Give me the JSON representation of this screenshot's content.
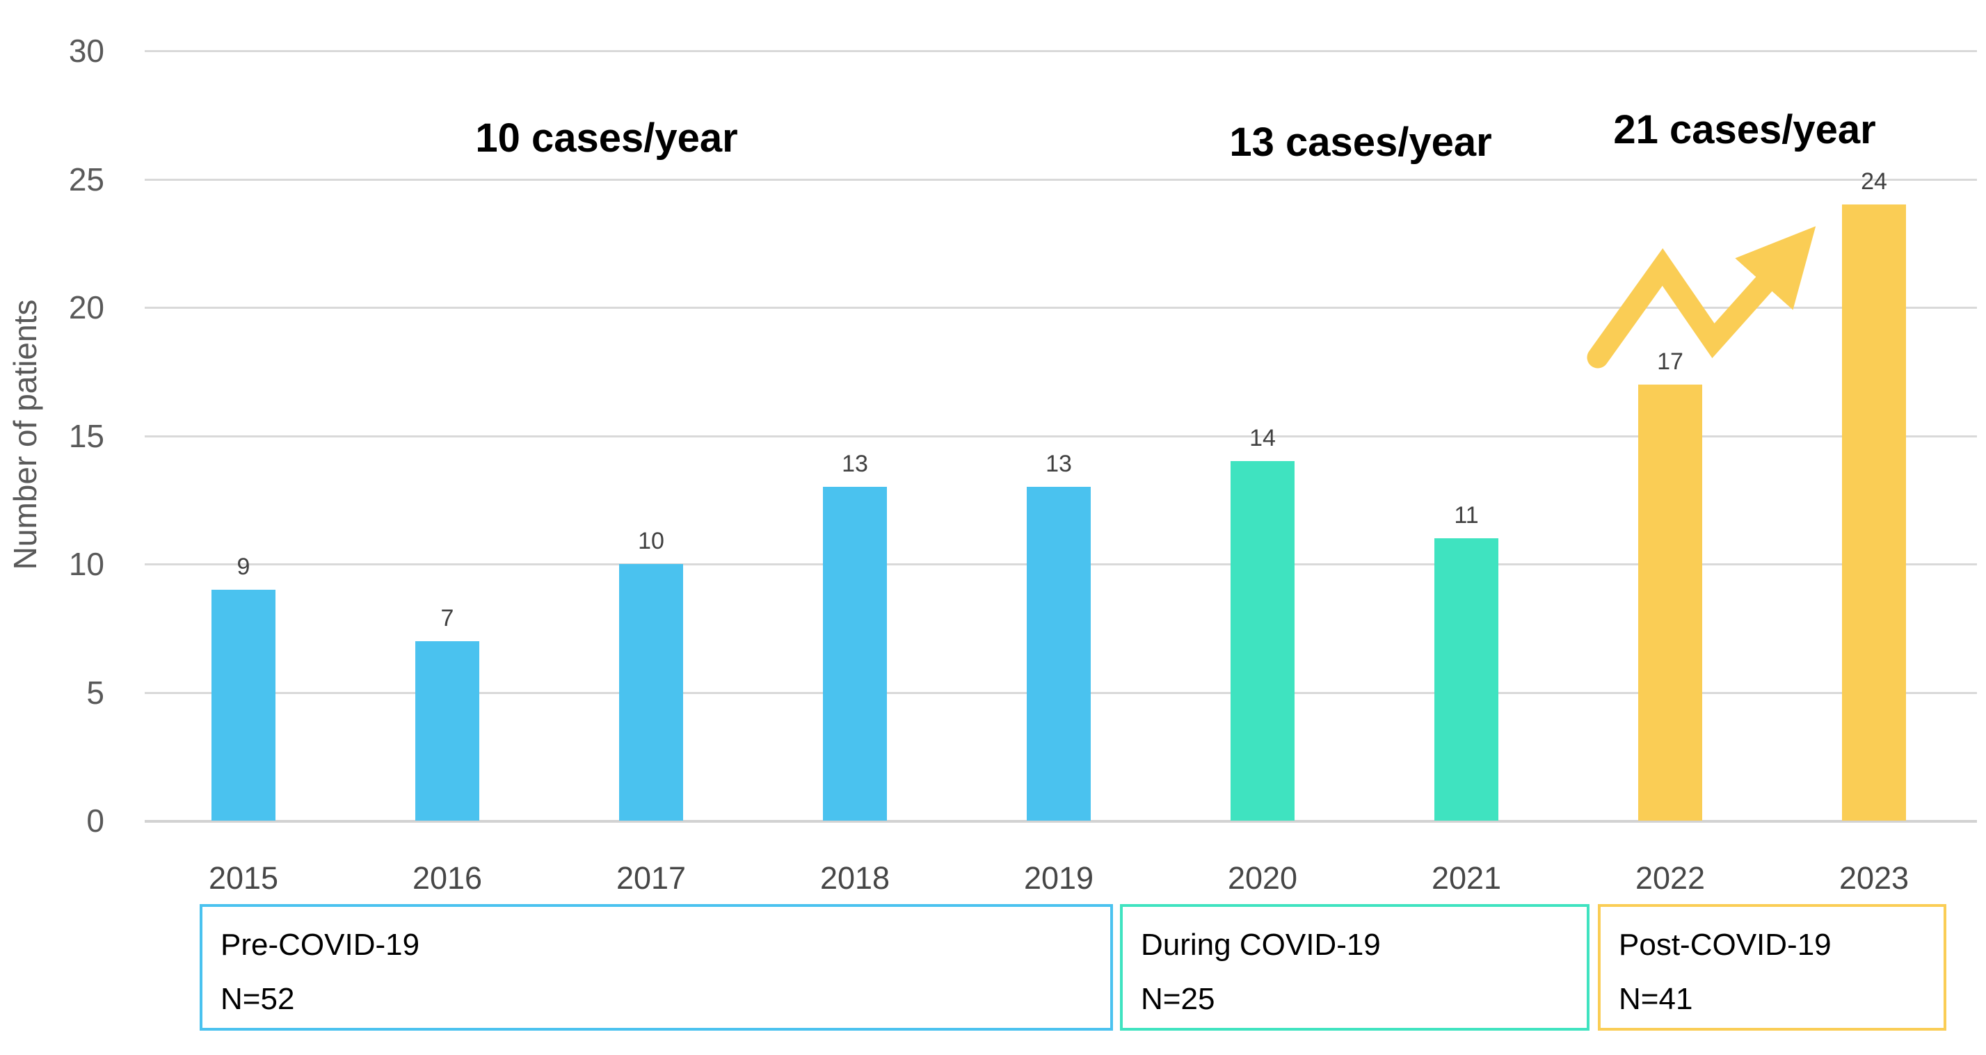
{
  "chart_data": {
    "type": "bar",
    "title": "",
    "ylabel": "Number of patients",
    "xlabel": "",
    "ylim": [
      0,
      30
    ],
    "yticks": [
      0,
      5,
      10,
      15,
      20,
      25,
      30
    ],
    "grid": true,
    "legend_position": "bottom",
    "categories": [
      "2015",
      "2016",
      "2017",
      "2018",
      "2019",
      "2020",
      "2021",
      "2022",
      "2023"
    ],
    "values": [
      9,
      7,
      10,
      13,
      13,
      14,
      11,
      17,
      24
    ],
    "bar_group_index": [
      0,
      0,
      0,
      0,
      0,
      1,
      1,
      2,
      2
    ],
    "groups": [
      {
        "label": "Pre-COVID-19",
        "n_label": "N=52",
        "rate_label": "10 cases/year",
        "color": "#4AC2EF",
        "first_year": "2015",
        "last_year": "2019"
      },
      {
        "label": "During COVID-19",
        "n_label": "N=25",
        "rate_label": "13 cases/year",
        "color": "#3FE3C0",
        "first_year": "2020",
        "last_year": "2021"
      },
      {
        "label": "Post-COVID-19",
        "n_label": "N=41",
        "rate_label": "21 cases/year",
        "color": "#FACD55",
        "first_year": "2022",
        "last_year": "2023"
      }
    ],
    "annotations": {
      "trend_arrow": {
        "color": "#FACD55",
        "from_year": "2022",
        "to_year": "2023",
        "direction": "up-right"
      }
    },
    "colors": {
      "gridline": "#D9D9D9",
      "axis_tick_text": "#595959",
      "value_label_text": "#404040",
      "annotation_text": "#000000"
    }
  }
}
